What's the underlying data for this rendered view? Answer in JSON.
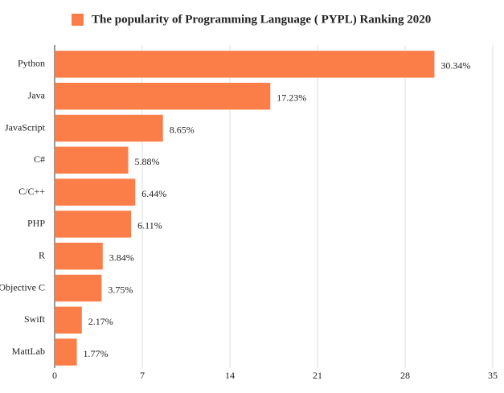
{
  "chart_data": {
    "type": "bar",
    "orientation": "horizontal",
    "title": "The popularity of Programming Language ( PYPL) Ranking 2020",
    "categories": [
      "Python",
      "Java",
      "JavaScript",
      "C#",
      "C/C++",
      "PHP",
      "R",
      "Objective C",
      "Swift",
      "MattLab"
    ],
    "values": [
      30.34,
      17.23,
      8.65,
      5.88,
      6.44,
      6.11,
      3.84,
      3.75,
      2.17,
      1.77
    ],
    "value_labels": [
      "30.34%",
      "17.23%",
      "8.65%",
      "5.88%",
      "6.44%",
      "6.11%",
      "3.84%",
      "3.75%",
      "2.17%",
      "1.77%"
    ],
    "color": "#fb7d48",
    "xlim": [
      0,
      35
    ],
    "xticks": [
      0,
      7,
      14,
      21,
      28,
      35
    ],
    "grid": true
  }
}
